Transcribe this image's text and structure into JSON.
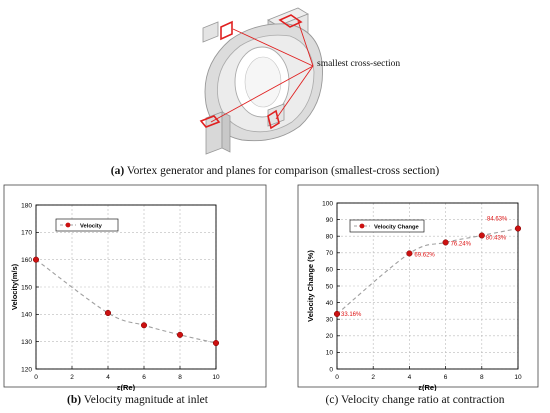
{
  "figure_a": {
    "callout_label": "smallest cross-section",
    "caption_letter": "(a)",
    "caption_text": " Vortex generator and planes for comparison (smallest-cross section)"
  },
  "figure_b": {
    "caption_letter": "(b)",
    "caption_text": " Velocity magnitude at inlet"
  },
  "figure_c": {
    "caption_letter": "(c)",
    "caption_text": " Velocity change ratio at contraction"
  },
  "colors": {
    "marker": "#cc1111",
    "dashed_line": "#a0a0a0",
    "label_red": "#dd1111",
    "plane_red": "#e02020",
    "grid": "#bbbbbb"
  },
  "chart_data": [
    {
      "type": "line",
      "xlabel": "ε(Re)",
      "ylabel": "Velocity(m/s)",
      "xlim": [
        0,
        10
      ],
      "ylim": [
        120,
        180
      ],
      "xticks": [
        0,
        2,
        4,
        6,
        8,
        10
      ],
      "yticks": [
        120,
        130,
        140,
        150,
        160,
        170,
        180
      ],
      "grid": true,
      "legend_position": "top-left",
      "series": [
        {
          "name": "Velocity",
          "x": [
            0,
            4,
            6,
            8,
            10
          ],
          "y": [
            160,
            140.5,
            136,
            132.5,
            129.5
          ],
          "point_labels": []
        }
      ]
    },
    {
      "type": "line",
      "xlabel": "ε(Re)",
      "ylabel": "Velocity Change (%)",
      "xlim": [
        0,
        10
      ],
      "ylim": [
        0,
        100
      ],
      "xticks": [
        0,
        2,
        4,
        6,
        8,
        10
      ],
      "yticks": [
        0,
        10,
        20,
        30,
        40,
        50,
        60,
        70,
        80,
        90,
        100
      ],
      "grid": true,
      "legend_position": "top-left",
      "series": [
        {
          "name": "Velocity Change",
          "x": [
            0,
            4,
            6,
            8,
            10
          ],
          "y": [
            33.16,
            69.62,
            76.24,
            80.43,
            84.63
          ],
          "point_labels": [
            "33.16%",
            "69.62%",
            "76.24%",
            "80.43%",
            "84.63%"
          ]
        }
      ]
    }
  ]
}
